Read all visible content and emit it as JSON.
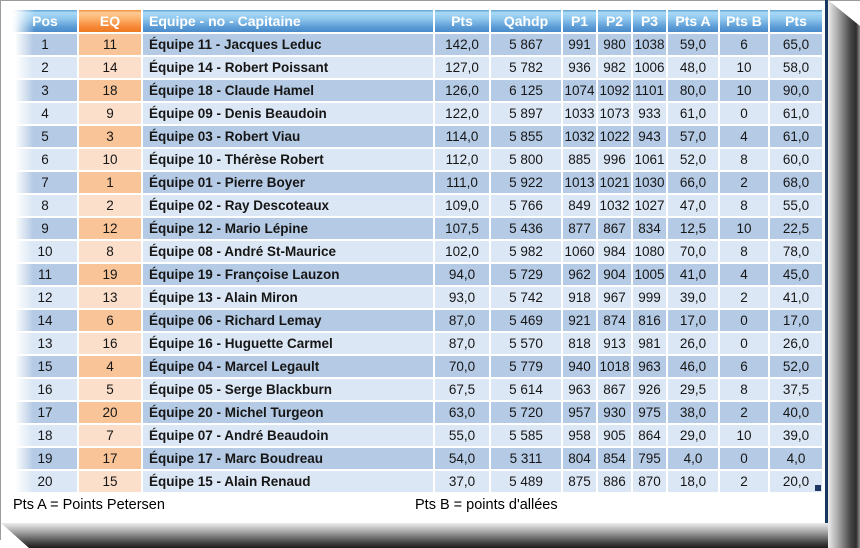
{
  "colors": {
    "header_blue": "#5b9bd5",
    "header_orange": "#f58634",
    "row_blue_dark": "#b5cbe5",
    "row_blue_light": "#dce7f5",
    "row_peach_dark": "#f8c498",
    "row_peach_light": "#fcdfca",
    "border_navy": "#17375e"
  },
  "table": {
    "headers": [
      "Pos",
      "EQ",
      "Equipe - no - Capitaine",
      "Pts",
      "Qahdp",
      "P1",
      "P2",
      "P3",
      "Pts A",
      "Pts B",
      "Pts"
    ],
    "rows": [
      {
        "pos": "1",
        "eq": "11",
        "equipe": "Équipe 11 - Jacques Leduc",
        "pts": "142,0",
        "qahdp": "5 867",
        "p1": "991",
        "p2": "980",
        "p3": "1038",
        "pts_a": "59,0",
        "pts_b": "6",
        "pts_total": "65,0"
      },
      {
        "pos": "2",
        "eq": "14",
        "equipe": "Équipe 14 - Robert Poissant",
        "pts": "127,0",
        "qahdp": "5 782",
        "p1": "936",
        "p2": "982",
        "p3": "1006",
        "pts_a": "48,0",
        "pts_b": "10",
        "pts_total": "58,0"
      },
      {
        "pos": "3",
        "eq": "18",
        "equipe": "Équipe 18 - Claude Hamel",
        "pts": "126,0",
        "qahdp": "6 125",
        "p1": "1074",
        "p2": "1092",
        "p3": "1101",
        "pts_a": "80,0",
        "pts_b": "10",
        "pts_total": "90,0"
      },
      {
        "pos": "4",
        "eq": "9",
        "equipe": "Équipe 09 - Denis Beaudoin",
        "pts": "122,0",
        "qahdp": "5 897",
        "p1": "1033",
        "p2": "1073",
        "p3": "933",
        "pts_a": "61,0",
        "pts_b": "0",
        "pts_total": "61,0"
      },
      {
        "pos": "5",
        "eq": "3",
        "equipe": "Équipe 03 - Robert Viau",
        "pts": "114,0",
        "qahdp": "5 855",
        "p1": "1032",
        "p2": "1022",
        "p3": "943",
        "pts_a": "57,0",
        "pts_b": "4",
        "pts_total": "61,0"
      },
      {
        "pos": "6",
        "eq": "10",
        "equipe": "Équipe 10 - Thérèse Robert",
        "pts": "112,0",
        "qahdp": "5 800",
        "p1": "885",
        "p2": "996",
        "p3": "1061",
        "pts_a": "52,0",
        "pts_b": "8",
        "pts_total": "60,0"
      },
      {
        "pos": "7",
        "eq": "1",
        "equipe": "Équipe 01 - Pierre Boyer",
        "pts": "111,0",
        "qahdp": "5 922",
        "p1": "1013",
        "p2": "1021",
        "p3": "1030",
        "pts_a": "66,0",
        "pts_b": "2",
        "pts_total": "68,0"
      },
      {
        "pos": "8",
        "eq": "2",
        "equipe": "Équipe 02 - Ray Descoteaux",
        "pts": "109,0",
        "qahdp": "5 766",
        "p1": "849",
        "p2": "1032",
        "p3": "1027",
        "pts_a": "47,0",
        "pts_b": "8",
        "pts_total": "55,0"
      },
      {
        "pos": "9",
        "eq": "12",
        "equipe": "Équipe 12 - Mario Lépine",
        "pts": "107,5",
        "qahdp": "5 436",
        "p1": "877",
        "p2": "867",
        "p3": "834",
        "pts_a": "12,5",
        "pts_b": "10",
        "pts_total": "22,5"
      },
      {
        "pos": "10",
        "eq": "8",
        "equipe": "Équipe 08 - André St-Maurice",
        "pts": "102,0",
        "qahdp": "5 982",
        "p1": "1060",
        "p2": "984",
        "p3": "1080",
        "pts_a": "70,0",
        "pts_b": "8",
        "pts_total": "78,0"
      },
      {
        "pos": "11",
        "eq": "19",
        "equipe": "Équipe 19 - Françoise Lauzon",
        "pts": "94,0",
        "qahdp": "5 729",
        "p1": "962",
        "p2": "904",
        "p3": "1005",
        "pts_a": "41,0",
        "pts_b": "4",
        "pts_total": "45,0"
      },
      {
        "pos": "12",
        "eq": "13",
        "equipe": "Équipe 13 - Alain Miron",
        "pts": "93,0",
        "qahdp": "5 742",
        "p1": "918",
        "p2": "967",
        "p3": "999",
        "pts_a": "39,0",
        "pts_b": "2",
        "pts_total": "41,0"
      },
      {
        "pos": "14",
        "eq": "6",
        "equipe": "Équipe 06 - Richard Lemay",
        "pts": "87,0",
        "qahdp": "5 469",
        "p1": "921",
        "p2": "874",
        "p3": "816",
        "pts_a": "17,0",
        "pts_b": "0",
        "pts_total": "17,0"
      },
      {
        "pos": "13",
        "eq": "16",
        "equipe": "Équipe 16 - Huguette Carmel",
        "pts": "87,0",
        "qahdp": "5 570",
        "p1": "818",
        "p2": "913",
        "p3": "981",
        "pts_a": "26,0",
        "pts_b": "0",
        "pts_total": "26,0"
      },
      {
        "pos": "15",
        "eq": "4",
        "equipe": "Équipe 04 - Marcel Legault",
        "pts": "70,0",
        "qahdp": "5 779",
        "p1": "940",
        "p2": "1018",
        "p3": "963",
        "pts_a": "46,0",
        "pts_b": "6",
        "pts_total": "52,0"
      },
      {
        "pos": "16",
        "eq": "5",
        "equipe": "Équipe 05 - Serge Blackburn",
        "pts": "67,5",
        "qahdp": "5 614",
        "p1": "963",
        "p2": "867",
        "p3": "926",
        "pts_a": "29,5",
        "pts_b": "8",
        "pts_total": "37,5"
      },
      {
        "pos": "17",
        "eq": "20",
        "equipe": "Équipe 20 - Michel Turgeon",
        "pts": "63,0",
        "qahdp": "5 720",
        "p1": "957",
        "p2": "930",
        "p3": "975",
        "pts_a": "38,0",
        "pts_b": "2",
        "pts_total": "40,0"
      },
      {
        "pos": "18",
        "eq": "7",
        "equipe": "Équipe 07 - André Beaudoin",
        "pts": "55,0",
        "qahdp": "5 585",
        "p1": "958",
        "p2": "905",
        "p3": "864",
        "pts_a": "29,0",
        "pts_b": "10",
        "pts_total": "39,0"
      },
      {
        "pos": "19",
        "eq": "17",
        "equipe": "Équipe 17 - Marc Boudreau",
        "pts": "54,0",
        "qahdp": "5 311",
        "p1": "804",
        "p2": "854",
        "p3": "795",
        "pts_a": "4,0",
        "pts_b": "0",
        "pts_total": "4,0"
      },
      {
        "pos": "20",
        "eq": "15",
        "equipe": "Équipe 15 - Alain Renaud",
        "pts": "37,0",
        "qahdp": "5 489",
        "p1": "875",
        "p2": "886",
        "p3": "870",
        "pts_a": "18,0",
        "pts_b": "2",
        "pts_total": "20,0"
      }
    ]
  },
  "footer": {
    "note_a": "Pts A = Points Petersen",
    "note_b": "Pts B = points d'allées"
  }
}
